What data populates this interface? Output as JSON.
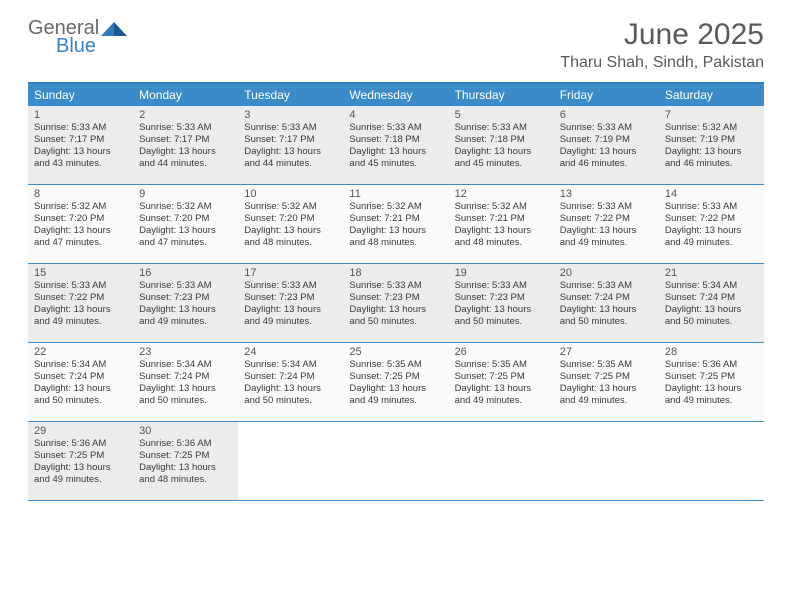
{
  "brand": {
    "part1": "General",
    "part2": "Blue"
  },
  "title": "June 2025",
  "location": "Tharu Shah, Sindh, Pakistan",
  "colors": {
    "header_bg": "#3b8bc9",
    "border": "#2f7bbf",
    "shade": "#ececec",
    "plain": "#fafafa"
  },
  "dayNames": [
    "Sunday",
    "Monday",
    "Tuesday",
    "Wednesday",
    "Thursday",
    "Friday",
    "Saturday"
  ],
  "weeks": [
    [
      {
        "n": "1",
        "sr": "5:33 AM",
        "ss": "7:17 PM",
        "dl": "13 hours and 43 minutes."
      },
      {
        "n": "2",
        "sr": "5:33 AM",
        "ss": "7:17 PM",
        "dl": "13 hours and 44 minutes."
      },
      {
        "n": "3",
        "sr": "5:33 AM",
        "ss": "7:17 PM",
        "dl": "13 hours and 44 minutes."
      },
      {
        "n": "4",
        "sr": "5:33 AM",
        "ss": "7:18 PM",
        "dl": "13 hours and 45 minutes."
      },
      {
        "n": "5",
        "sr": "5:33 AM",
        "ss": "7:18 PM",
        "dl": "13 hours and 45 minutes."
      },
      {
        "n": "6",
        "sr": "5:33 AM",
        "ss": "7:19 PM",
        "dl": "13 hours and 46 minutes."
      },
      {
        "n": "7",
        "sr": "5:32 AM",
        "ss": "7:19 PM",
        "dl": "13 hours and 46 minutes."
      }
    ],
    [
      {
        "n": "8",
        "sr": "5:32 AM",
        "ss": "7:20 PM",
        "dl": "13 hours and 47 minutes."
      },
      {
        "n": "9",
        "sr": "5:32 AM",
        "ss": "7:20 PM",
        "dl": "13 hours and 47 minutes."
      },
      {
        "n": "10",
        "sr": "5:32 AM",
        "ss": "7:20 PM",
        "dl": "13 hours and 48 minutes."
      },
      {
        "n": "11",
        "sr": "5:32 AM",
        "ss": "7:21 PM",
        "dl": "13 hours and 48 minutes."
      },
      {
        "n": "12",
        "sr": "5:32 AM",
        "ss": "7:21 PM",
        "dl": "13 hours and 48 minutes."
      },
      {
        "n": "13",
        "sr": "5:33 AM",
        "ss": "7:22 PM",
        "dl": "13 hours and 49 minutes."
      },
      {
        "n": "14",
        "sr": "5:33 AM",
        "ss": "7:22 PM",
        "dl": "13 hours and 49 minutes."
      }
    ],
    [
      {
        "n": "15",
        "sr": "5:33 AM",
        "ss": "7:22 PM",
        "dl": "13 hours and 49 minutes."
      },
      {
        "n": "16",
        "sr": "5:33 AM",
        "ss": "7:23 PM",
        "dl": "13 hours and 49 minutes."
      },
      {
        "n": "17",
        "sr": "5:33 AM",
        "ss": "7:23 PM",
        "dl": "13 hours and 49 minutes."
      },
      {
        "n": "18",
        "sr": "5:33 AM",
        "ss": "7:23 PM",
        "dl": "13 hours and 50 minutes."
      },
      {
        "n": "19",
        "sr": "5:33 AM",
        "ss": "7:23 PM",
        "dl": "13 hours and 50 minutes."
      },
      {
        "n": "20",
        "sr": "5:33 AM",
        "ss": "7:24 PM",
        "dl": "13 hours and 50 minutes."
      },
      {
        "n": "21",
        "sr": "5:34 AM",
        "ss": "7:24 PM",
        "dl": "13 hours and 50 minutes."
      }
    ],
    [
      {
        "n": "22",
        "sr": "5:34 AM",
        "ss": "7:24 PM",
        "dl": "13 hours and 50 minutes."
      },
      {
        "n": "23",
        "sr": "5:34 AM",
        "ss": "7:24 PM",
        "dl": "13 hours and 50 minutes."
      },
      {
        "n": "24",
        "sr": "5:34 AM",
        "ss": "7:24 PM",
        "dl": "13 hours and 50 minutes."
      },
      {
        "n": "25",
        "sr": "5:35 AM",
        "ss": "7:25 PM",
        "dl": "13 hours and 49 minutes."
      },
      {
        "n": "26",
        "sr": "5:35 AM",
        "ss": "7:25 PM",
        "dl": "13 hours and 49 minutes."
      },
      {
        "n": "27",
        "sr": "5:35 AM",
        "ss": "7:25 PM",
        "dl": "13 hours and 49 minutes."
      },
      {
        "n": "28",
        "sr": "5:36 AM",
        "ss": "7:25 PM",
        "dl": "13 hours and 49 minutes."
      }
    ],
    [
      {
        "n": "29",
        "sr": "5:36 AM",
        "ss": "7:25 PM",
        "dl": "13 hours and 49 minutes."
      },
      {
        "n": "30",
        "sr": "5:36 AM",
        "ss": "7:25 PM",
        "dl": "13 hours and 48 minutes."
      },
      null,
      null,
      null,
      null,
      null
    ]
  ],
  "labels": {
    "sunrise": "Sunrise: ",
    "sunset": "Sunset: ",
    "daylight": "Daylight: "
  }
}
